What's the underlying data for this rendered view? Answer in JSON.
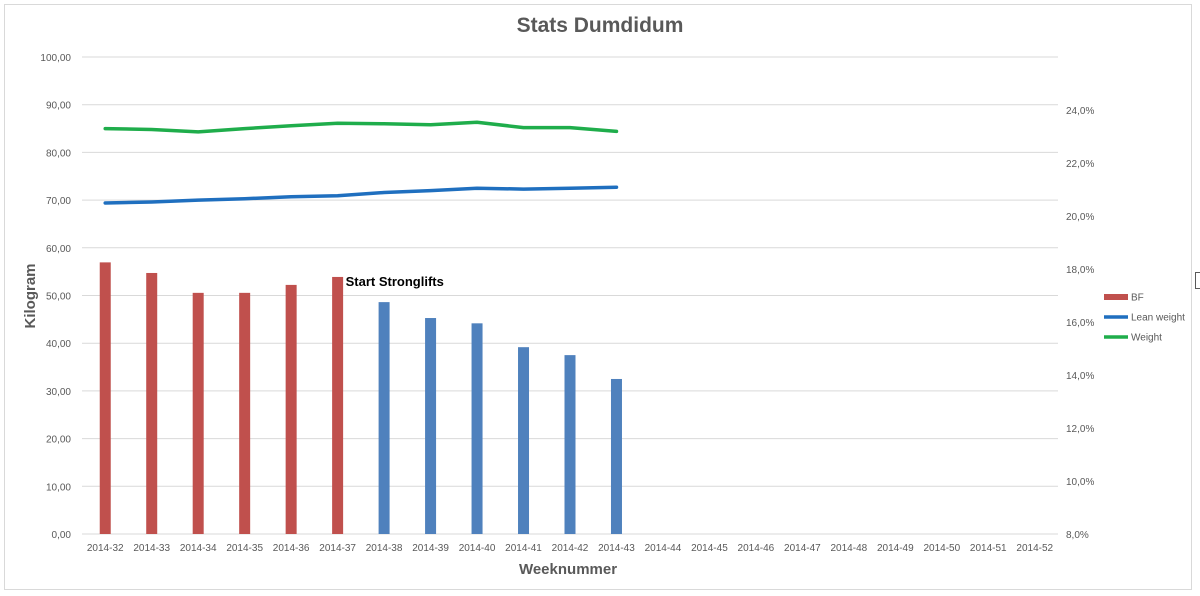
{
  "chart_data": {
    "type": "bar",
    "title": "Stats Dumdidum",
    "xlabel": "Weeknummer",
    "ylabel": "Kilogram",
    "ylim": [
      0,
      100
    ],
    "y2lim": [
      8,
      26
    ],
    "y_ticks": [
      "0,00",
      "10,00",
      "20,00",
      "30,00",
      "40,00",
      "50,00",
      "60,00",
      "70,00",
      "80,00",
      "90,00",
      "100,00"
    ],
    "y2_ticks": [
      "8,0%",
      "10,0%",
      "12,0%",
      "14,0%",
      "16,0%",
      "18,0%",
      "20,0%",
      "22,0%",
      "24,0%"
    ],
    "categories": [
      "2014-32",
      "2014-33",
      "2014-34",
      "2014-35",
      "2014-36",
      "2014-37",
      "2014-38",
      "2014-39",
      "2014-40",
      "2014-41",
      "2014-42",
      "2014-43",
      "2014-44",
      "2014-45",
      "2014-46",
      "2014-47",
      "2014-48",
      "2014-49",
      "2014-50",
      "2014-51",
      "2014-52"
    ],
    "series": [
      {
        "name": "BF",
        "type": "bar",
        "axis": "right",
        "color": "#c0504d",
        "highlight_color": "#4f81bd",
        "highlight_from_index": 6,
        "values": [
          18.25,
          17.85,
          17.1,
          17.1,
          17.4,
          17.7,
          16.75,
          16.15,
          15.95,
          15.05,
          14.75,
          13.85,
          null,
          null,
          null,
          null,
          null,
          null,
          null,
          null,
          null
        ]
      },
      {
        "name": "Lean weight",
        "type": "line",
        "axis": "left",
        "color": "#1f6fbf",
        "values": [
          69.4,
          69.6,
          70.0,
          70.3,
          70.7,
          70.9,
          71.6,
          72.0,
          72.5,
          72.3,
          72.5,
          72.7,
          null,
          null,
          null,
          null,
          null,
          null,
          null,
          null,
          null
        ]
      },
      {
        "name": "Weight",
        "type": "line",
        "axis": "left",
        "color": "#1fad4b",
        "values": [
          85.0,
          84.8,
          84.3,
          85.0,
          85.6,
          86.1,
          86.0,
          85.8,
          86.3,
          85.2,
          85.2,
          84.4,
          null,
          null,
          null,
          null,
          null,
          null,
          null,
          null,
          null
        ]
      }
    ],
    "annotations": [
      {
        "text": "Start Stronglifts",
        "category": "2014-37"
      }
    ],
    "grid": true,
    "legend": "right"
  }
}
